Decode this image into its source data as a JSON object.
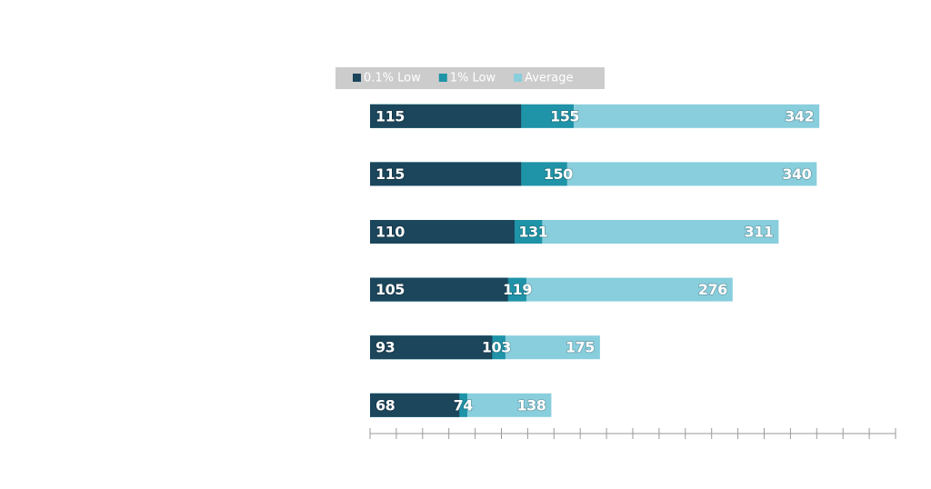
{
  "chart_data": {
    "type": "bar",
    "orientation": "horizontal",
    "categories": [
      null,
      null,
      null,
      null,
      null,
      null
    ],
    "series": [
      {
        "name": "0.1% Low",
        "color": "#1b465c",
        "values": [
          115,
          115,
          110,
          105,
          93,
          68
        ]
      },
      {
        "name": "1% Low",
        "color": "#1f93a8",
        "values": [
          155,
          150,
          131,
          119,
          103,
          74
        ]
      },
      {
        "name": "Average",
        "color": "#88cedd",
        "values": [
          342,
          340,
          311,
          276,
          175,
          138
        ]
      }
    ],
    "xlim": [
      0,
      400
    ],
    "xticks": [
      0,
      20,
      40,
      60,
      80,
      100,
      120,
      140,
      160,
      180,
      200,
      220,
      240,
      260,
      280,
      300,
      320,
      340,
      360,
      380,
      400
    ],
    "legend": "top"
  }
}
